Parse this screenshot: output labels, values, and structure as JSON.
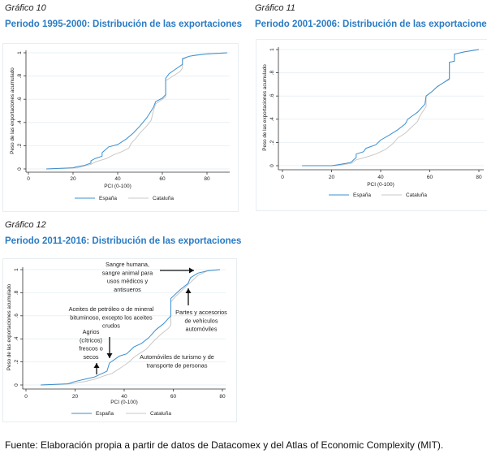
{
  "charts_meta": [
    {
      "label": "Gráfico 10",
      "title": "Periodo 1995-2000: Distribución de las exportaciones"
    },
    {
      "label": "Gráfico 11",
      "title": "Periodo 2001-2006: Distribución de las exportaciones"
    },
    {
      "label": "Gráfico 12",
      "title": "Periodo 2011-2016: Distribución de las exportaciones"
    }
  ],
  "footer": "Fuente: Elaboración propia a partir de datos de Datacomex y del Atlas of Economic Complexity (MIT).",
  "chart_data": [
    {
      "type": "line",
      "title": "Periodo 1995-2000: Distribución de las exportaciones",
      "xlabel": "PCI (0-100)",
      "ylabel": "Peso de las exportaciones acumulado",
      "xlim": [
        0,
        89
      ],
      "ylim": [
        0,
        1
      ],
      "xticks": [
        "0",
        "20",
        "40",
        "60",
        "80"
      ],
      "yticks": [
        "0",
        ".2",
        ".4",
        ".6",
        ".8",
        "1"
      ],
      "grid": true,
      "legend": "bottom",
      "series": [
        {
          "name": "España",
          "color": "#3b8fd0",
          "points": [
            [
              8,
              0
            ],
            [
              20,
              0.01
            ],
            [
              22,
              0.02
            ],
            [
              25,
              0.03
            ],
            [
              28,
              0.05
            ],
            [
              28,
              0.07
            ],
            [
              30,
              0.09
            ],
            [
              33,
              0.11
            ],
            [
              33,
              0.14
            ],
            [
              36,
              0.19
            ],
            [
              40,
              0.21
            ],
            [
              44,
              0.26
            ],
            [
              47,
              0.31
            ],
            [
              50,
              0.37
            ],
            [
              53,
              0.44
            ],
            [
              55,
              0.5
            ],
            [
              56,
              0.53
            ],
            [
              57,
              0.58
            ],
            [
              60,
              0.61
            ],
            [
              61.5,
              0.64
            ],
            [
              61.5,
              0.78
            ],
            [
              63,
              0.82
            ],
            [
              66,
              0.86
            ],
            [
              69,
              0.9
            ],
            [
              69,
              0.95
            ],
            [
              72,
              0.97
            ],
            [
              75,
              0.98
            ],
            [
              80,
              0.99
            ],
            [
              89,
              1
            ]
          ]
        },
        {
          "name": "Cataluña",
          "color": "#c8c8c8",
          "points": [
            [
              8,
              0
            ],
            [
              22,
              0.01
            ],
            [
              28,
              0.04
            ],
            [
              30,
              0.06
            ],
            [
              35,
              0.09
            ],
            [
              38,
              0.12
            ],
            [
              42,
              0.15
            ],
            [
              45,
              0.18
            ],
            [
              46,
              0.22
            ],
            [
              48,
              0.26
            ],
            [
              50,
              0.31
            ],
            [
              53,
              0.37
            ],
            [
              55,
              0.42
            ],
            [
              56,
              0.5
            ],
            [
              57,
              0.56
            ],
            [
              60,
              0.6
            ],
            [
              61.5,
              0.62
            ],
            [
              61.5,
              0.76
            ],
            [
              64,
              0.79
            ],
            [
              68,
              0.84
            ],
            [
              69,
              0.87
            ],
            [
              69,
              0.94
            ],
            [
              72,
              0.97
            ],
            [
              80,
              0.99
            ],
            [
              89,
              1
            ]
          ]
        }
      ]
    },
    {
      "type": "line",
      "title": "Periodo 2001-2006: Distribución de las exportaciones",
      "xlabel": "PCI (0-100)",
      "ylabel": "Peso de las exportaciones acumulado",
      "xlim": [
        0,
        80
      ],
      "ylim": [
        0,
        1
      ],
      "xticks": [
        "0",
        "20",
        "40",
        "60",
        "80"
      ],
      "yticks": [
        "0",
        ".2",
        ".4",
        ".6",
        ".8",
        "1"
      ],
      "grid": true,
      "legend": "bottom",
      "series": [
        {
          "name": "España",
          "color": "#3b8fd0",
          "points": [
            [
              8,
              0
            ],
            [
              20,
              0
            ],
            [
              23,
              0.01
            ],
            [
              26,
              0.02
            ],
            [
              28,
              0.03
            ],
            [
              29,
              0.05
            ],
            [
              30,
              0.07
            ],
            [
              30,
              0.1
            ],
            [
              33,
              0.12
            ],
            [
              34,
              0.15
            ],
            [
              38,
              0.18
            ],
            [
              40,
              0.22
            ],
            [
              44,
              0.27
            ],
            [
              47,
              0.31
            ],
            [
              50,
              0.36
            ],
            [
              51,
              0.4
            ],
            [
              53,
              0.43
            ],
            [
              55,
              0.46
            ],
            [
              58,
              0.53
            ],
            [
              58.5,
              0.6
            ],
            [
              61,
              0.64
            ],
            [
              63,
              0.68
            ],
            [
              66,
              0.72
            ],
            [
              68,
              0.75
            ],
            [
              68,
              0.89
            ],
            [
              70,
              0.9
            ],
            [
              70,
              0.96
            ],
            [
              74,
              0.98
            ],
            [
              80,
              1
            ]
          ]
        },
        {
          "name": "Cataluña",
          "color": "#c8c8c8",
          "points": [
            [
              8,
              0
            ],
            [
              22,
              0
            ],
            [
              28,
              0.02
            ],
            [
              30,
              0.05
            ],
            [
              35,
              0.08
            ],
            [
              38,
              0.1
            ],
            [
              42,
              0.14
            ],
            [
              45,
              0.19
            ],
            [
              47,
              0.24
            ],
            [
              50,
              0.28
            ],
            [
              53,
              0.34
            ],
            [
              55,
              0.38
            ],
            [
              56,
              0.43
            ],
            [
              58.5,
              0.51
            ],
            [
              58.5,
              0.6
            ],
            [
              61,
              0.64
            ],
            [
              63,
              0.68
            ],
            [
              66,
              0.72
            ],
            [
              68,
              0.74
            ],
            [
              68,
              0.89
            ],
            [
              70,
              0.9
            ],
            [
              70,
              0.96
            ],
            [
              74,
              0.98
            ],
            [
              80,
              1
            ]
          ]
        }
      ]
    },
    {
      "type": "line",
      "title": "Periodo 2011-2016: Distribución de las exportaciones",
      "xlabel": "PCI (0-100)",
      "ylabel": "Peso de las exportaciones acumulado",
      "xlim": [
        0,
        80
      ],
      "ylim": [
        0,
        1
      ],
      "xticks": [
        "0",
        "20",
        "40",
        "60",
        "80"
      ],
      "yticks": [
        "0",
        ".2",
        ".4",
        ".6",
        ".8",
        "1"
      ],
      "grid": true,
      "legend": "bottom",
      "series": [
        {
          "name": "España",
          "color": "#3b8fd0",
          "points": [
            [
              6,
              0
            ],
            [
              17,
              0.01
            ],
            [
              20,
              0.03
            ],
            [
              24,
              0.05
            ],
            [
              28,
              0.07
            ],
            [
              30,
              0.09
            ],
            [
              33,
              0.12
            ],
            [
              34,
              0.19
            ],
            [
              36,
              0.22
            ],
            [
              38,
              0.25
            ],
            [
              41,
              0.27
            ],
            [
              44,
              0.33
            ],
            [
              47,
              0.36
            ],
            [
              50,
              0.41
            ],
            [
              53,
              0.48
            ],
            [
              56,
              0.53
            ],
            [
              59,
              0.6
            ],
            [
              59,
              0.75
            ],
            [
              61,
              0.79
            ],
            [
              63,
              0.83
            ],
            [
              66,
              0.88
            ],
            [
              67,
              0.93
            ],
            [
              70,
              0.97
            ],
            [
              74,
              0.99
            ],
            [
              79,
              1
            ]
          ]
        },
        {
          "name": "Cataluña",
          "color": "#c8c8c8",
          "points": [
            [
              6,
              0
            ],
            [
              18,
              0.01
            ],
            [
              24,
              0.03
            ],
            [
              28,
              0.05
            ],
            [
              32,
              0.08
            ],
            [
              35,
              0.1
            ],
            [
              38,
              0.14
            ],
            [
              40,
              0.17
            ],
            [
              42,
              0.2
            ],
            [
              44,
              0.24
            ],
            [
              46,
              0.27
            ],
            [
              49,
              0.31
            ],
            [
              52,
              0.38
            ],
            [
              55,
              0.44
            ],
            [
              58,
              0.49
            ],
            [
              59,
              0.52
            ],
            [
              59,
              0.72
            ],
            [
              61,
              0.77
            ],
            [
              64,
              0.83
            ],
            [
              67,
              0.89
            ],
            [
              70,
              0.95
            ],
            [
              74,
              0.99
            ],
            [
              79,
              1
            ]
          ]
        }
      ],
      "annotations": [
        {
          "lines": [
            "Sangre humana,",
            "sangre animal para",
            "usos médicos y",
            "antisueros"
          ]
        },
        {
          "lines": [
            "Aceites de petróleo o de mineral",
            "bituminoso, excepto los aceites",
            "crudos"
          ]
        },
        {
          "lines": [
            "Agrios",
            "(cítricos)",
            "frescos o",
            "secos"
          ]
        },
        {
          "lines": [
            "Partes y accesorios",
            "de vehículos",
            "automóviles"
          ]
        },
        {
          "lines": [
            "Automóviles de turismo y de",
            "transporte de personas"
          ]
        }
      ]
    }
  ]
}
